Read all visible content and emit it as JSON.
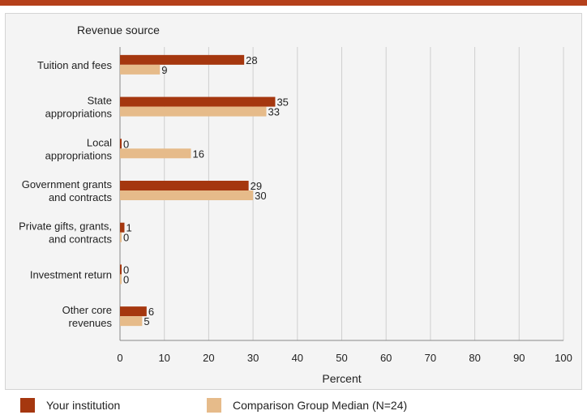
{
  "colors": {
    "series1": "#a5370f",
    "series2": "#e6bb8a",
    "grid": "#cfcfcf",
    "axis": "#888888",
    "accent": "#b5401b"
  },
  "chart_data": {
    "type": "bar",
    "orientation": "horizontal",
    "title": "Revenue source",
    "xlabel": "Percent",
    "xlim": [
      0,
      100
    ],
    "xticks": [
      0,
      10,
      20,
      30,
      40,
      50,
      60,
      70,
      80,
      90,
      100
    ],
    "grid": true,
    "categories": [
      [
        "Tuition and fees"
      ],
      [
        "State",
        "appropriations"
      ],
      [
        "Local",
        "appropriations"
      ],
      [
        "Government grants",
        "and contracts"
      ],
      [
        "Private gifts, grants,",
        "and contracts"
      ],
      [
        "Investment return"
      ],
      [
        "Other core",
        "revenues"
      ]
    ],
    "series": [
      {
        "name": "Your institution",
        "values": [
          28,
          35,
          0,
          29,
          1,
          0,
          6
        ]
      },
      {
        "name": "Comparison Group Median (N=24)",
        "values": [
          9,
          33,
          16,
          30,
          0,
          0,
          5
        ]
      }
    ],
    "legend_position": "bottom"
  }
}
